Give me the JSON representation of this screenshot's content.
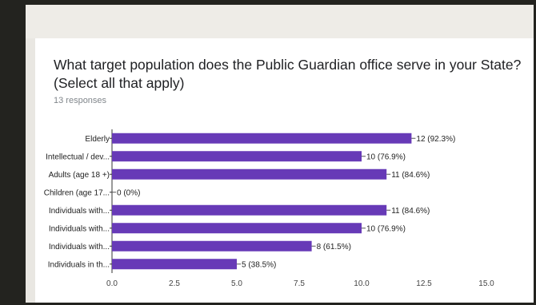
{
  "question": {
    "title": "What target population does the Public Guardian office serve in your State? (Select all that apply)",
    "responses": "13 responses"
  },
  "colors": {
    "bar": "#673ab7",
    "card": "#ffffff",
    "background": "#e9e7e2",
    "frame": "#23231f"
  },
  "chart_data": {
    "type": "bar",
    "orientation": "horizontal",
    "categories": [
      "Elderly",
      "Intellectual / dev...",
      "Adults (age 18 +)",
      "Children (age 17...",
      "Individuals with...",
      "Individuals with...",
      "Individuals with...",
      "Individuals in th..."
    ],
    "values": [
      12,
      10,
      11,
      0,
      11,
      10,
      8,
      5
    ],
    "value_labels": [
      "12 (92.3%)",
      "10 (76.9%)",
      "11 (84.6%)",
      "0 (0%)",
      "11 (84.6%)",
      "10 (76.9%)",
      "8 (61.5%)",
      "5 (38.5%)"
    ],
    "xlim": [
      0,
      15
    ],
    "xticks": [
      "0.0",
      "2.5",
      "5.0",
      "7.5",
      "10.0",
      "12.5",
      "15.0"
    ],
    "xtick_values": [
      0,
      2.5,
      5,
      7.5,
      10,
      12.5,
      15
    ],
    "grid": false,
    "legend": "none"
  }
}
